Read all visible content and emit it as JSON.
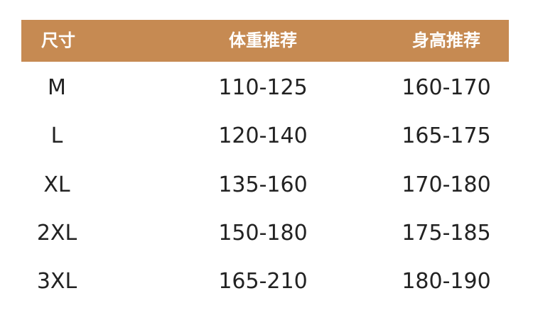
{
  "colors": {
    "header_bg": "#C68A52",
    "header_text": "#FFFFFF",
    "body_text": "#222222"
  },
  "table": {
    "headers": [
      "尺寸",
      "体重推荐",
      "身高推荐"
    ],
    "rows": [
      [
        "M",
        "110-125",
        "160-170"
      ],
      [
        "L",
        "120-140",
        "165-175"
      ],
      [
        "XL",
        "135-160",
        "170-180"
      ],
      [
        "2XL",
        "150-180",
        "175-185"
      ],
      [
        "3XL",
        "165-210",
        "180-190"
      ]
    ]
  }
}
